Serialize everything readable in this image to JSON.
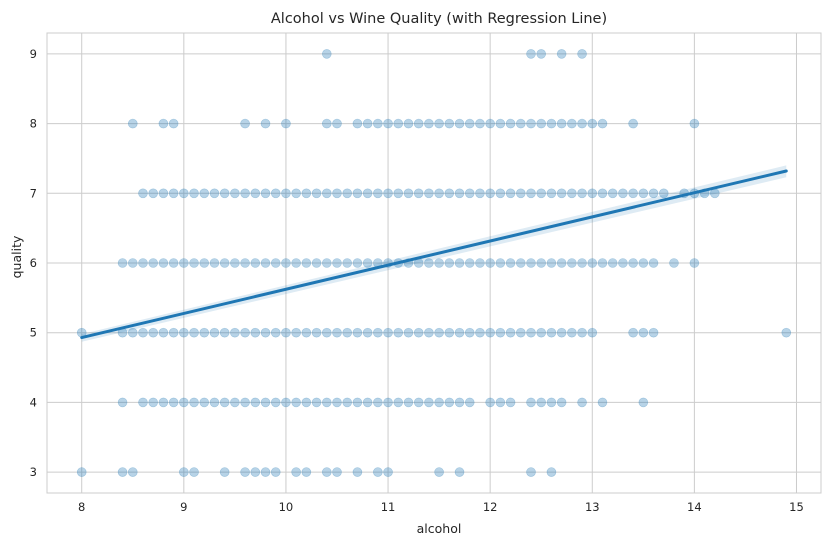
{
  "chart_data": {
    "type": "scatter",
    "title": "Alcohol vs Wine Quality (with Regression Line)",
    "xlabel": "alcohol",
    "ylabel": "quality",
    "xlim": [
      7.66,
      15.24
    ],
    "ylim": [
      2.7,
      9.3
    ],
    "xticks": [
      8,
      9,
      10,
      11,
      12,
      13,
      14,
      15
    ],
    "yticks": [
      3,
      4,
      5,
      6,
      7,
      8,
      9
    ],
    "grid": true,
    "colors": {
      "points": "#1f77b4",
      "line": "#1f77b4",
      "band": "#1f77b4",
      "grid": "#cccccc",
      "spine": "#cccccc",
      "text": "#262626"
    },
    "regression": {
      "x": [
        8.0,
        14.9
      ],
      "y": [
        4.93,
        7.32
      ]
    },
    "ci_band": {
      "x": [
        8.0,
        14.9
      ],
      "lower": [
        4.87,
        7.23
      ],
      "upper": [
        4.98,
        7.4
      ]
    },
    "points": [
      [
        10.4,
        9
      ],
      [
        12.4,
        9
      ],
      [
        12.5,
        9
      ],
      [
        12.7,
        9
      ],
      [
        12.9,
        9
      ],
      [
        8.5,
        8
      ],
      [
        8.8,
        8
      ],
      [
        8.9,
        8
      ],
      [
        9.6,
        8
      ],
      [
        9.8,
        8
      ],
      [
        10.0,
        8
      ],
      [
        10.4,
        8
      ],
      [
        10.5,
        8
      ],
      [
        10.7,
        8
      ],
      [
        10.8,
        8
      ],
      [
        10.9,
        8
      ],
      [
        11.0,
        8
      ],
      [
        11.1,
        8
      ],
      [
        11.2,
        8
      ],
      [
        11.3,
        8
      ],
      [
        11.4,
        8
      ],
      [
        11.5,
        8
      ],
      [
        11.6,
        8
      ],
      [
        11.7,
        8
      ],
      [
        11.8,
        8
      ],
      [
        11.9,
        8
      ],
      [
        12.0,
        8
      ],
      [
        12.1,
        8
      ],
      [
        12.2,
        8
      ],
      [
        12.3,
        8
      ],
      [
        12.4,
        8
      ],
      [
        12.5,
        8
      ],
      [
        12.6,
        8
      ],
      [
        12.7,
        8
      ],
      [
        12.8,
        8
      ],
      [
        12.9,
        8
      ],
      [
        13.0,
        8
      ],
      [
        13.1,
        8
      ],
      [
        13.4,
        8
      ],
      [
        14.0,
        8
      ],
      [
        8.6,
        7
      ],
      [
        8.7,
        7
      ],
      [
        8.8,
        7
      ],
      [
        8.9,
        7
      ],
      [
        9.0,
        7
      ],
      [
        9.1,
        7
      ],
      [
        9.2,
        7
      ],
      [
        9.3,
        7
      ],
      [
        9.4,
        7
      ],
      [
        9.5,
        7
      ],
      [
        9.6,
        7
      ],
      [
        9.7,
        7
      ],
      [
        9.8,
        7
      ],
      [
        9.9,
        7
      ],
      [
        10.0,
        7
      ],
      [
        10.1,
        7
      ],
      [
        10.2,
        7
      ],
      [
        10.3,
        7
      ],
      [
        10.4,
        7
      ],
      [
        10.5,
        7
      ],
      [
        10.6,
        7
      ],
      [
        10.7,
        7
      ],
      [
        10.8,
        7
      ],
      [
        10.9,
        7
      ],
      [
        11.0,
        7
      ],
      [
        11.1,
        7
      ],
      [
        11.2,
        7
      ],
      [
        11.3,
        7
      ],
      [
        11.4,
        7
      ],
      [
        11.5,
        7
      ],
      [
        11.6,
        7
      ],
      [
        11.7,
        7
      ],
      [
        11.8,
        7
      ],
      [
        11.9,
        7
      ],
      [
        12.0,
        7
      ],
      [
        12.1,
        7
      ],
      [
        12.2,
        7
      ],
      [
        12.3,
        7
      ],
      [
        12.4,
        7
      ],
      [
        12.5,
        7
      ],
      [
        12.6,
        7
      ],
      [
        12.7,
        7
      ],
      [
        12.8,
        7
      ],
      [
        12.9,
        7
      ],
      [
        13.0,
        7
      ],
      [
        13.1,
        7
      ],
      [
        13.2,
        7
      ],
      [
        13.3,
        7
      ],
      [
        13.4,
        7
      ],
      [
        13.5,
        7
      ],
      [
        13.6,
        7
      ],
      [
        13.7,
        7
      ],
      [
        13.9,
        7
      ],
      [
        14.0,
        7
      ],
      [
        14.1,
        7
      ],
      [
        14.2,
        7
      ],
      [
        8.4,
        6
      ],
      [
        8.5,
        6
      ],
      [
        8.6,
        6
      ],
      [
        8.7,
        6
      ],
      [
        8.8,
        6
      ],
      [
        8.9,
        6
      ],
      [
        9.0,
        6
      ],
      [
        9.1,
        6
      ],
      [
        9.2,
        6
      ],
      [
        9.3,
        6
      ],
      [
        9.4,
        6
      ],
      [
        9.5,
        6
      ],
      [
        9.6,
        6
      ],
      [
        9.7,
        6
      ],
      [
        9.8,
        6
      ],
      [
        9.9,
        6
      ],
      [
        10.0,
        6
      ],
      [
        10.1,
        6
      ],
      [
        10.2,
        6
      ],
      [
        10.3,
        6
      ],
      [
        10.4,
        6
      ],
      [
        10.5,
        6
      ],
      [
        10.6,
        6
      ],
      [
        10.7,
        6
      ],
      [
        10.8,
        6
      ],
      [
        10.9,
        6
      ],
      [
        11.0,
        6
      ],
      [
        11.1,
        6
      ],
      [
        11.2,
        6
      ],
      [
        11.3,
        6
      ],
      [
        11.4,
        6
      ],
      [
        11.5,
        6
      ],
      [
        11.6,
        6
      ],
      [
        11.7,
        6
      ],
      [
        11.8,
        6
      ],
      [
        11.9,
        6
      ],
      [
        12.0,
        6
      ],
      [
        12.1,
        6
      ],
      [
        12.2,
        6
      ],
      [
        12.3,
        6
      ],
      [
        12.4,
        6
      ],
      [
        12.5,
        6
      ],
      [
        12.6,
        6
      ],
      [
        12.7,
        6
      ],
      [
        12.8,
        6
      ],
      [
        12.9,
        6
      ],
      [
        13.0,
        6
      ],
      [
        13.1,
        6
      ],
      [
        13.2,
        6
      ],
      [
        13.3,
        6
      ],
      [
        13.4,
        6
      ],
      [
        13.5,
        6
      ],
      [
        13.6,
        6
      ],
      [
        13.8,
        6
      ],
      [
        14.0,
        6
      ],
      [
        8.0,
        5
      ],
      [
        8.4,
        5
      ],
      [
        8.5,
        5
      ],
      [
        8.6,
        5
      ],
      [
        8.7,
        5
      ],
      [
        8.8,
        5
      ],
      [
        8.9,
        5
      ],
      [
        9.0,
        5
      ],
      [
        9.1,
        5
      ],
      [
        9.2,
        5
      ],
      [
        9.3,
        5
      ],
      [
        9.4,
        5
      ],
      [
        9.5,
        5
      ],
      [
        9.6,
        5
      ],
      [
        9.7,
        5
      ],
      [
        9.8,
        5
      ],
      [
        9.9,
        5
      ],
      [
        10.0,
        5
      ],
      [
        10.1,
        5
      ],
      [
        10.2,
        5
      ],
      [
        10.3,
        5
      ],
      [
        10.4,
        5
      ],
      [
        10.5,
        5
      ],
      [
        10.6,
        5
      ],
      [
        10.7,
        5
      ],
      [
        10.8,
        5
      ],
      [
        10.9,
        5
      ],
      [
        11.0,
        5
      ],
      [
        11.1,
        5
      ],
      [
        11.2,
        5
      ],
      [
        11.3,
        5
      ],
      [
        11.4,
        5
      ],
      [
        11.5,
        5
      ],
      [
        11.6,
        5
      ],
      [
        11.7,
        5
      ],
      [
        11.8,
        5
      ],
      [
        11.9,
        5
      ],
      [
        12.0,
        5
      ],
      [
        12.1,
        5
      ],
      [
        12.2,
        5
      ],
      [
        12.3,
        5
      ],
      [
        12.4,
        5
      ],
      [
        12.5,
        5
      ],
      [
        12.6,
        5
      ],
      [
        12.7,
        5
      ],
      [
        12.8,
        5
      ],
      [
        12.9,
        5
      ],
      [
        13.0,
        5
      ],
      [
        13.4,
        5
      ],
      [
        13.5,
        5
      ],
      [
        13.6,
        5
      ],
      [
        14.9,
        5
      ],
      [
        8.4,
        4
      ],
      [
        8.6,
        4
      ],
      [
        8.7,
        4
      ],
      [
        8.8,
        4
      ],
      [
        8.9,
        4
      ],
      [
        9.0,
        4
      ],
      [
        9.1,
        4
      ],
      [
        9.2,
        4
      ],
      [
        9.3,
        4
      ],
      [
        9.4,
        4
      ],
      [
        9.5,
        4
      ],
      [
        9.6,
        4
      ],
      [
        9.7,
        4
      ],
      [
        9.8,
        4
      ],
      [
        9.9,
        4
      ],
      [
        10.0,
        4
      ],
      [
        10.1,
        4
      ],
      [
        10.2,
        4
      ],
      [
        10.3,
        4
      ],
      [
        10.4,
        4
      ],
      [
        10.5,
        4
      ],
      [
        10.6,
        4
      ],
      [
        10.7,
        4
      ],
      [
        10.8,
        4
      ],
      [
        10.9,
        4
      ],
      [
        11.0,
        4
      ],
      [
        11.1,
        4
      ],
      [
        11.2,
        4
      ],
      [
        11.3,
        4
      ],
      [
        11.4,
        4
      ],
      [
        11.5,
        4
      ],
      [
        11.6,
        4
      ],
      [
        11.7,
        4
      ],
      [
        11.8,
        4
      ],
      [
        12.0,
        4
      ],
      [
        12.1,
        4
      ],
      [
        12.2,
        4
      ],
      [
        12.4,
        4
      ],
      [
        12.5,
        4
      ],
      [
        12.6,
        4
      ],
      [
        12.7,
        4
      ],
      [
        12.9,
        4
      ],
      [
        13.1,
        4
      ],
      [
        13.5,
        4
      ],
      [
        8.0,
        3
      ],
      [
        8.4,
        3
      ],
      [
        8.5,
        3
      ],
      [
        9.0,
        3
      ],
      [
        9.1,
        3
      ],
      [
        9.4,
        3
      ],
      [
        9.6,
        3
      ],
      [
        9.7,
        3
      ],
      [
        9.8,
        3
      ],
      [
        9.9,
        3
      ],
      [
        10.1,
        3
      ],
      [
        10.2,
        3
      ],
      [
        10.4,
        3
      ],
      [
        10.5,
        3
      ],
      [
        10.7,
        3
      ],
      [
        10.9,
        3
      ],
      [
        11.0,
        3
      ],
      [
        11.5,
        3
      ],
      [
        11.7,
        3
      ],
      [
        12.4,
        3
      ],
      [
        12.6,
        3
      ]
    ]
  }
}
